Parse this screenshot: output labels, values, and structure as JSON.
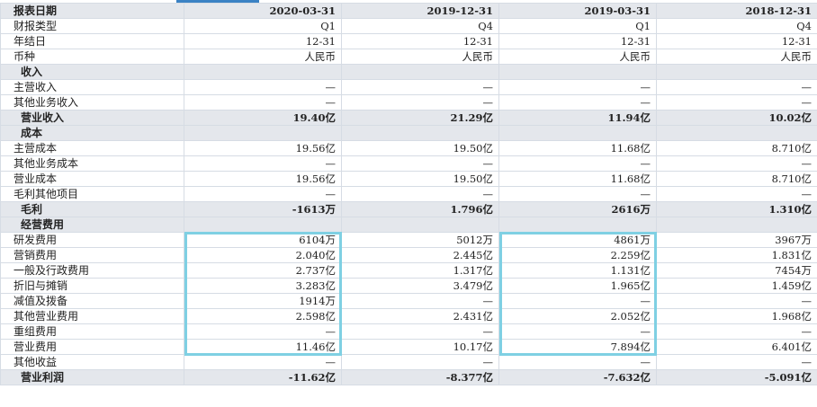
{
  "columns": [
    "报表日期",
    "2020-03-31",
    "2019-12-31",
    "2019-03-31",
    "2018-12-31"
  ],
  "rows": [
    {
      "type": "info",
      "label": "财报类型",
      "values": [
        "Q1",
        "Q4",
        "Q1",
        "Q4"
      ]
    },
    {
      "type": "info",
      "label": "年结日",
      "values": [
        "12-31",
        "12-31",
        "12-31",
        "12-31"
      ]
    },
    {
      "type": "info",
      "label": "币种",
      "values": [
        "人民币",
        "人民币",
        "人民币",
        "人民币"
      ]
    },
    {
      "type": "section",
      "label": "收入",
      "values": [
        "",
        "",
        "",
        ""
      ]
    },
    {
      "type": "item",
      "label": "主营收入",
      "values": [
        "—",
        "—",
        "—",
        "—"
      ]
    },
    {
      "type": "item",
      "label": "其他业务收入",
      "values": [
        "—",
        "—",
        "—",
        "—"
      ]
    },
    {
      "type": "total",
      "label": "营业收入",
      "values": [
        "19.40亿",
        "21.29亿",
        "11.94亿",
        "10.02亿"
      ]
    },
    {
      "type": "section",
      "label": "成本",
      "values": [
        "",
        "",
        "",
        ""
      ]
    },
    {
      "type": "item",
      "label": "主营成本",
      "values": [
        "19.56亿",
        "19.50亿",
        "11.68亿",
        "8.710亿"
      ]
    },
    {
      "type": "item",
      "label": "其他业务成本",
      "values": [
        "—",
        "—",
        "—",
        "—"
      ]
    },
    {
      "type": "item",
      "label": "营业成本",
      "values": [
        "19.56亿",
        "19.50亿",
        "11.68亿",
        "8.710亿"
      ]
    },
    {
      "type": "item",
      "label": "毛利其他项目",
      "values": [
        "—",
        "—",
        "—",
        "—"
      ]
    },
    {
      "type": "total",
      "label": "毛利",
      "values": [
        "-1613万",
        "1.796亿",
        "2616万",
        "1.310亿"
      ]
    },
    {
      "type": "section",
      "label": "经营费用",
      "values": [
        "",
        "",
        "",
        ""
      ]
    },
    {
      "type": "item",
      "label": "研发费用",
      "values": [
        "6104万",
        "5012万",
        "4861万",
        "3967万"
      ]
    },
    {
      "type": "item",
      "label": "营销费用",
      "values": [
        "2.040亿",
        "2.445亿",
        "2.259亿",
        "1.831亿"
      ]
    },
    {
      "type": "item",
      "label": "一般及行政费用",
      "values": [
        "2.737亿",
        "1.317亿",
        "1.131亿",
        "7454万"
      ]
    },
    {
      "type": "item",
      "label": "折旧与摊销",
      "values": [
        "3.283亿",
        "3.479亿",
        "1.965亿",
        "1.459亿"
      ]
    },
    {
      "type": "item",
      "label": "减值及拨备",
      "values": [
        "1914万",
        "—",
        "—",
        "—"
      ]
    },
    {
      "type": "item",
      "label": "其他营业费用",
      "values": [
        "2.598亿",
        "2.431亿",
        "2.052亿",
        "1.968亿"
      ]
    },
    {
      "type": "item",
      "label": "重组费用",
      "values": [
        "—",
        "—",
        "—",
        "—"
      ]
    },
    {
      "type": "item",
      "label": "营业费用",
      "values": [
        "11.46亿",
        "10.17亿",
        "7.894亿",
        "6.401亿"
      ]
    },
    {
      "type": "item",
      "label": "其他收益",
      "values": [
        "—",
        "—",
        "—",
        "—"
      ]
    },
    {
      "type": "total",
      "label": "营业利润",
      "values": [
        "-11.62亿",
        "-8.377亿",
        "-7.632亿",
        "-5.091亿"
      ]
    }
  ],
  "highlights": [
    {
      "column": "2020-03-31",
      "rows": [
        "研发费用",
        "营业费用"
      ],
      "color": "#7fd0e3"
    },
    {
      "column": "2019-03-31",
      "rows": [
        "研发费用",
        "营业费用"
      ],
      "color": "#7fd0e3"
    }
  ],
  "colors": {
    "header_bg": "#e4e7ec",
    "grid": "#d6dce4",
    "tab_accent": "#3b82c4"
  }
}
